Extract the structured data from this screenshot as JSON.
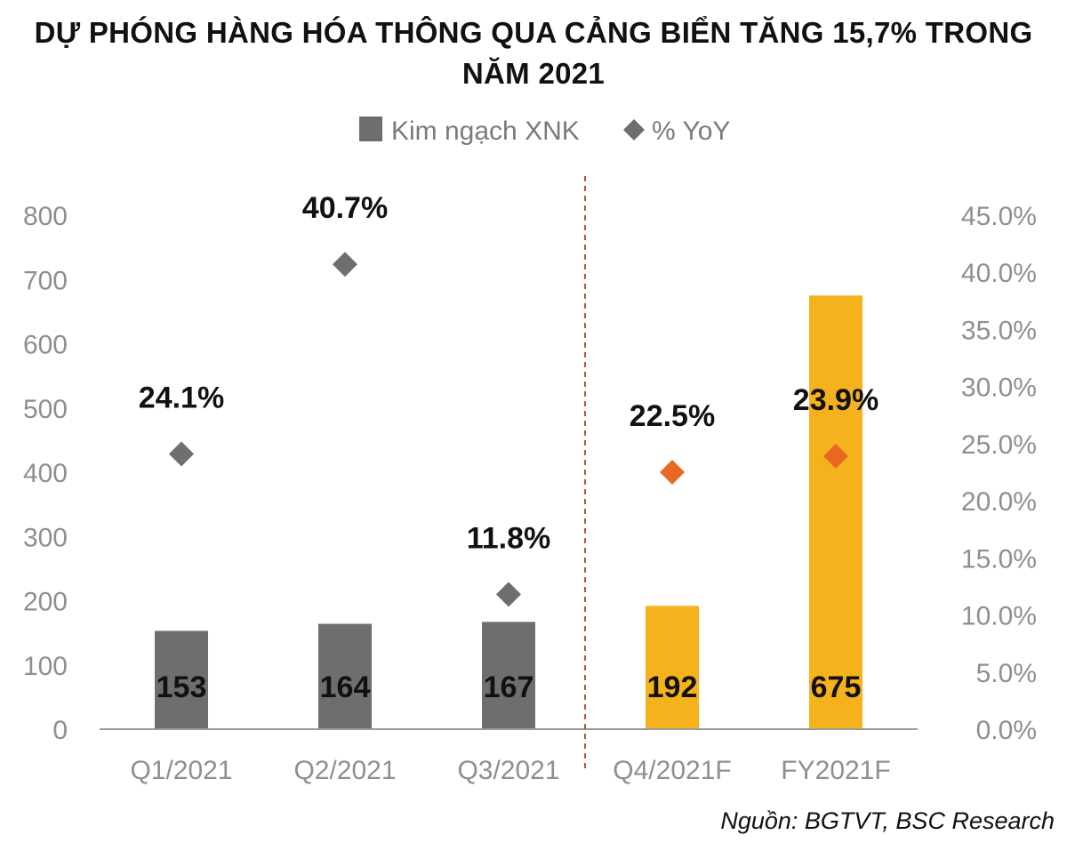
{
  "title_line1": "DỰ PHÓNG HÀNG HÓA THÔNG QUA CẢNG BIỂN TĂNG 15,7% TRONG",
  "title_line2": "NĂM 2021",
  "source": "Nguồn: BGTVT, BSC Research",
  "chart_data": {
    "type": "bar",
    "categories": [
      "Q1/2021",
      "Q2/2021",
      "Q3/2021",
      "Q4/2021F",
      "FY2021F"
    ],
    "series": [
      {
        "name": "Kim ngạch XNK",
        "type": "bar",
        "axis": "left",
        "values": [
          153,
          164,
          167,
          192,
          675
        ],
        "labels": [
          "153",
          "164",
          "167",
          "192",
          "675"
        ],
        "colors": [
          "#6e6e6e",
          "#6e6e6e",
          "#6e6e6e",
          "#f5b21d",
          "#f5b21d"
        ]
      },
      {
        "name": "% YoY",
        "type": "scatter",
        "marker": "diamond",
        "axis": "right",
        "values": [
          24.1,
          40.7,
          11.8,
          22.5,
          23.9
        ],
        "labels": [
          "24.1%",
          "40.7%",
          "11.8%",
          "22.5%",
          "23.9%"
        ],
        "colors": [
          "#6e6e6e",
          "#6e6e6e",
          "#6e6e6e",
          "#e86a22",
          "#e86a22"
        ]
      }
    ],
    "legend_position": "top-center",
    "legend_swatch_color": "#6e6e6e",
    "y_left": {
      "ylim": [
        0,
        800
      ],
      "ticks": [
        0,
        100,
        200,
        300,
        400,
        500,
        600,
        700,
        800
      ],
      "tick_labels": [
        "0",
        "100",
        "200",
        "300",
        "400",
        "500",
        "600",
        "700",
        "800"
      ]
    },
    "y_right": {
      "ylim": [
        0,
        45
      ],
      "ticks": [
        0,
        5,
        10,
        15,
        20,
        25,
        30,
        35,
        40,
        45
      ],
      "tick_labels": [
        "0.0%",
        "5.0%",
        "10.0%",
        "15.0%",
        "20.0%",
        "25.0%",
        "30.0%",
        "35.0%",
        "40.0%",
        "45.0%"
      ]
    },
    "separator": {
      "between": [
        "Q3/2021",
        "Q4/2021F"
      ],
      "style": "dashed",
      "color": "#c0582c"
    },
    "grid": false,
    "axis_color": "#9a9a9a",
    "tick_label_color": "#8f8f8f"
  }
}
